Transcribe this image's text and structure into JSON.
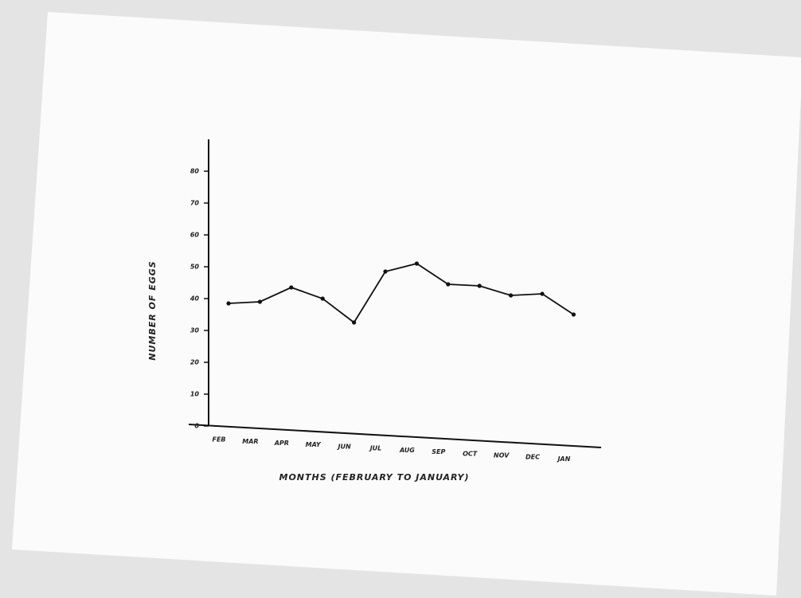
{
  "chart_data": {
    "type": "line",
    "x_label": "MONTHS (FEBRUARY TO JANUARY)",
    "y_label": "NUMBER OF EGGS",
    "categories": [
      "FEB",
      "MAR",
      "APR",
      "MAY",
      "JUN",
      "JUL",
      "AUG",
      "SEP",
      "OCT",
      "NOV",
      "DEC",
      "JAN"
    ],
    "values": [
      38.5,
      39,
      43.5,
      40,
      32.5,
      48.5,
      51,
      44.5,
      44,
      41,
      41.5,
      35
    ],
    "color": "#111111",
    "ylim": [
      0,
      90
    ],
    "yticks": [
      0,
      10,
      20,
      30,
      40,
      50,
      60,
      70,
      80
    ],
    "grid": false
  }
}
